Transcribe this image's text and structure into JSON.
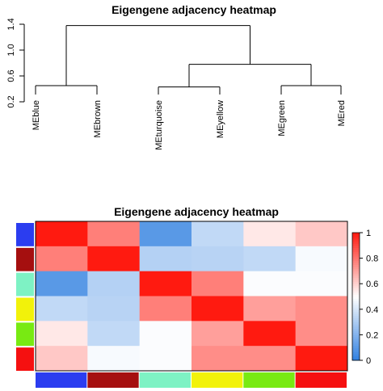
{
  "chart_data": [
    {
      "type": "dendrogram",
      "title": "Eigengene adjacency heatmap",
      "ylim": [
        0.2,
        1.5
      ],
      "yticks": [
        0.2,
        0.6,
        1.0,
        1.4
      ],
      "ytick_labels": [
        "0.2",
        "0.6",
        "1.0",
        "1.4"
      ],
      "leaves": [
        "MEblue",
        "MEbrown",
        "MEturquoise",
        "MEyellow",
        "MEgreen",
        "MEred"
      ],
      "merges": [
        {
          "a": "MEblue",
          "b": "MEbrown",
          "height": 0.45
        },
        {
          "a": "MEgreen",
          "b": "MEred",
          "height": 0.45
        },
        {
          "a": "MEturquoise",
          "b": "MEyellow",
          "height": 0.43
        },
        {
          "a": "MEturquoise+MEyellow",
          "b": "MEgreen+MEred",
          "height": 0.78
        },
        {
          "a": "MEblue+MEbrown",
          "b": "all-right",
          "height": 1.38
        }
      ]
    },
    {
      "type": "heatmap",
      "title": "Eigengene adjacency heatmap",
      "module_colors": [
        "#2b3df0",
        "#a50f0f",
        "#7ef2c4",
        "#f2f20a",
        "#78ea12",
        "#f51010"
      ],
      "values": [
        [
          1.0,
          0.78,
          0.1,
          0.35,
          0.55,
          0.62
        ],
        [
          0.78,
          1.0,
          0.32,
          0.33,
          0.35,
          0.48
        ],
        [
          0.1,
          0.32,
          1.0,
          0.78,
          0.49,
          0.49
        ],
        [
          0.35,
          0.33,
          0.78,
          1.0,
          0.71,
          0.75
        ],
        [
          0.55,
          0.35,
          0.49,
          0.71,
          1.0,
          0.75
        ],
        [
          0.62,
          0.48,
          0.49,
          0.75,
          0.75,
          1.0
        ]
      ],
      "colorbar": {
        "min": 0,
        "max": 1,
        "ticks": [
          0,
          0.2,
          0.4,
          0.6,
          0.8,
          1
        ],
        "tick_labels": [
          "0",
          "0.2",
          "0.4",
          "0.6",
          "0.8",
          "1"
        ],
        "colors": [
          "#2f7fe0",
          "#ffffff",
          "#ff1a10"
        ]
      }
    }
  ]
}
